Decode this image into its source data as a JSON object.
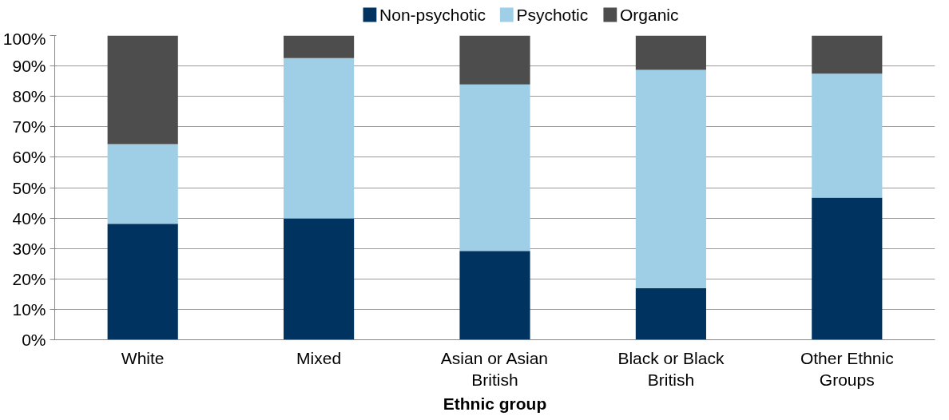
{
  "chart_data": {
    "type": "bar",
    "stacked": true,
    "xlabel": "Ethnic group",
    "categories": [
      "White",
      "Mixed",
      "Asian or Asian British",
      "Black or Black British",
      "Other Ethnic Groups"
    ],
    "series": [
      {
        "name": "Non-psychotic",
        "color": "#003360",
        "values": [
          38.1,
          39.9,
          29.2,
          17.0,
          46.7
        ]
      },
      {
        "name": "Psychotic",
        "color": "#9ecfe6",
        "values": [
          26.2,
          52.7,
          54.7,
          71.7,
          40.8
        ]
      },
      {
        "name": "Organic",
        "color": "#4d4d4d",
        "values": [
          35.7,
          7.4,
          16.1,
          11.3,
          12.5
        ]
      }
    ],
    "ylim": [
      0,
      100
    ],
    "yticks": [
      {
        "value": 0,
        "label": "0%"
      },
      {
        "value": 10,
        "label": "10%"
      },
      {
        "value": 20,
        "label": "20%"
      },
      {
        "value": 30,
        "label": "30%"
      },
      {
        "value": 40,
        "label": "40%"
      },
      {
        "value": 50,
        "label": "50%"
      },
      {
        "value": 60,
        "label": "60%"
      },
      {
        "value": 70,
        "label": "70%"
      },
      {
        "value": 80,
        "label": "80%"
      },
      {
        "value": 90,
        "label": "90%"
      },
      {
        "value": 100,
        "label": "100%"
      }
    ],
    "grid": "y",
    "legend": "top"
  }
}
